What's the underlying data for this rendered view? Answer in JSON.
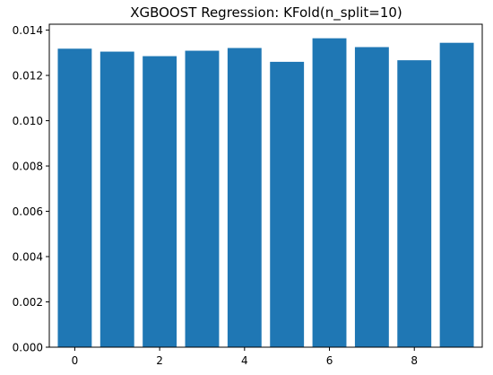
{
  "chart_data": {
    "type": "bar",
    "title": "XGBOOST Regression: KFold(n_split=10)",
    "xlabel": "",
    "ylabel": "",
    "categories": [
      0,
      1,
      2,
      3,
      4,
      5,
      6,
      7,
      8,
      9
    ],
    "values": [
      0.01318,
      0.01305,
      0.01285,
      0.01309,
      0.01321,
      0.0126,
      0.01364,
      0.01325,
      0.01267,
      0.01344
    ],
    "ylim": [
      0,
      0.01426
    ],
    "xlim": [
      -0.6,
      9.6
    ],
    "x_ticks": [
      0,
      2,
      4,
      6,
      8
    ],
    "x_tick_labels": [
      "0",
      "2",
      "4",
      "6",
      "8"
    ],
    "y_ticks": [
      0,
      0.002,
      0.004,
      0.006,
      0.008,
      0.01,
      0.012,
      0.014
    ],
    "y_tick_labels": [
      "0.000",
      "0.002",
      "0.004",
      "0.006",
      "0.008",
      "0.010",
      "0.012",
      "0.014"
    ],
    "bar_color": "#1f77b4",
    "grid": false,
    "legend": "none"
  }
}
